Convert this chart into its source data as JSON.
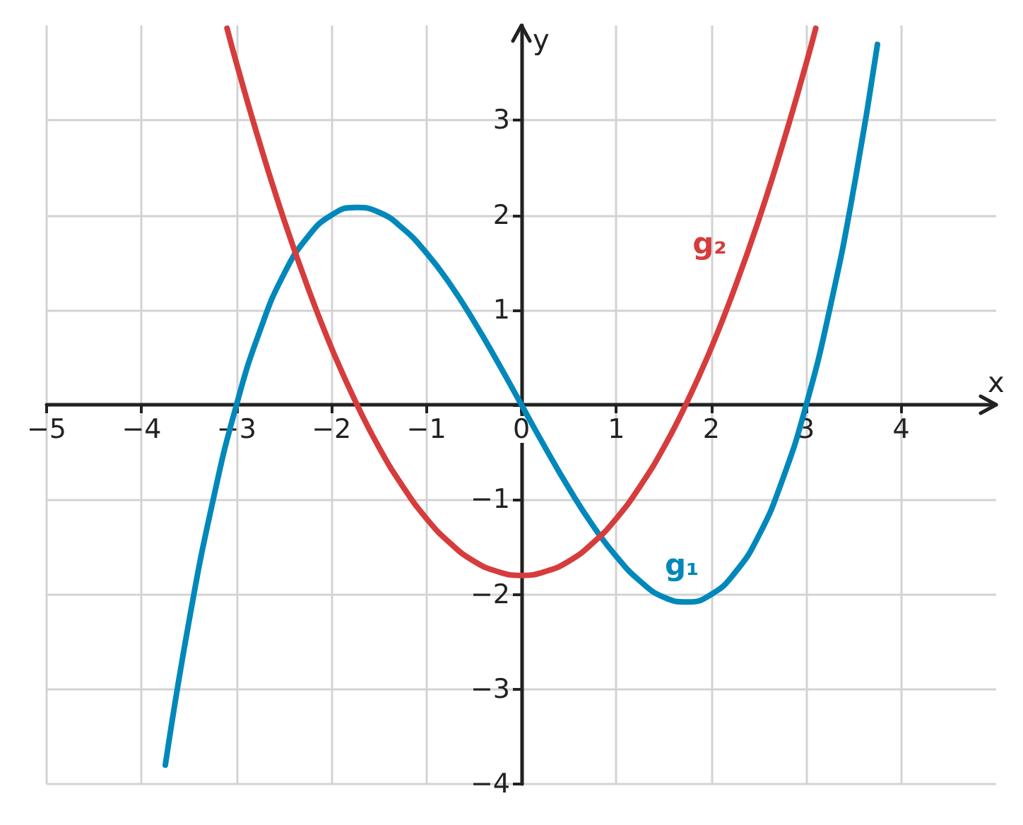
{
  "chart_data": {
    "type": "line",
    "xlabel": "x",
    "ylabel": "y",
    "xlim": [
      -5,
      5
    ],
    "ylim": [
      -4,
      4
    ],
    "xticks": [
      -5,
      -4,
      -3,
      -2,
      -1,
      0,
      1,
      2,
      3,
      4
    ],
    "yticks": [
      -4,
      -3,
      -2,
      -1,
      {
        "value": 0,
        "label": null
      },
      1,
      2,
      3
    ],
    "grid": true,
    "legend": false,
    "marker": "none",
    "line_style": "solid",
    "series": [
      {
        "name": "g₁",
        "color": "#0088bb",
        "x": [
          -3.75,
          -3.5,
          -3.25,
          -3,
          -2.75,
          -2.5,
          -2.25,
          -2,
          -1.75,
          -1.5,
          -1.25,
          -1,
          -0.75,
          -0.5,
          -0.25,
          0,
          0.25,
          0.5,
          0.75,
          1,
          1.25,
          1.5,
          1.75,
          2,
          2.25,
          2.5,
          2.75,
          3,
          3.25,
          3.5,
          3.75
        ],
        "values": [
          -3.8,
          -2.28,
          -1.02,
          0,
          0.79,
          1.38,
          1.77,
          2,
          2.08,
          2.03,
          1.86,
          1.6,
          1.27,
          0.88,
          0.45,
          0,
          -0.45,
          -0.88,
          -1.27,
          -1.6,
          -1.86,
          -2.03,
          -2.08,
          -2,
          -1.77,
          -1.38,
          -0.79,
          0,
          1.02,
          2.28,
          3.8
        ]
      },
      {
        "name": "g₂",
        "color": "#d63c3c",
        "x": [
          -3.1,
          -3,
          -2.75,
          -2.5,
          -2.25,
          -2,
          -1.75,
          -1.5,
          -1.25,
          -1,
          -0.75,
          -0.5,
          -0.25,
          0,
          0.25,
          0.5,
          0.75,
          1,
          1.25,
          1.5,
          1.75,
          2,
          2.25,
          2.5,
          2.75,
          3,
          3.1
        ],
        "values": [
          3.97,
          3.6,
          2.74,
          1.95,
          1.24,
          0.6,
          0.04,
          -0.45,
          -0.86,
          -1.2,
          -1.46,
          -1.65,
          -1.76,
          -1.8,
          -1.76,
          -1.65,
          -1.46,
          -1.2,
          -0.86,
          -0.45,
          0.04,
          0.6,
          1.24,
          1.95,
          2.74,
          3.6,
          3.97
        ]
      }
    ]
  }
}
